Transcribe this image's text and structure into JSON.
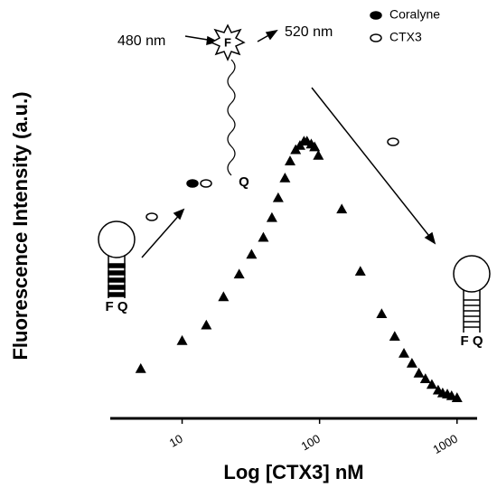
{
  "chart_data": {
    "type": "scatter",
    "x_label": "Log [CTX3] nM",
    "y_label": "Fluorescence Intensity (a.u.)",
    "x_scale": "log",
    "xlim": [
      3,
      1400
    ],
    "xticks": [
      10,
      100,
      1000
    ],
    "ylim": [
      0,
      100
    ],
    "legend": [
      "Coralyne",
      "CTX3"
    ],
    "annotations": [
      "480 nm",
      "520 nm",
      "F",
      "Q",
      "F Q",
      "F Q"
    ],
    "series": [
      {
        "color": "#000000",
        "marker": "triangle",
        "x": [
          5,
          10,
          15,
          20,
          26,
          32,
          39,
          45,
          50,
          56,
          61,
          67,
          72,
          77,
          81,
          87,
          92,
          98,
          145,
          198,
          283,
          352,
          411,
          470,
          528,
          589,
          656,
          729,
          786,
          850,
          913,
          1000
        ],
        "values": [
          17.6,
          27.5,
          33,
          43,
          51,
          58,
          64,
          71,
          78,
          85,
          91,
          95,
          96.5,
          98,
          98,
          97,
          96,
          93,
          74,
          52,
          37,
          29,
          23,
          19.5,
          16,
          14,
          12,
          10,
          9,
          8.6,
          8,
          7.3
        ]
      }
    ]
  }
}
